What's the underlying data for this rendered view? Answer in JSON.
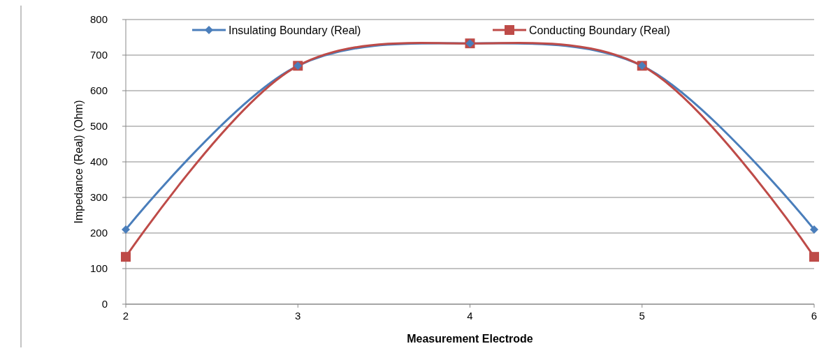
{
  "chart_data": {
    "type": "line",
    "xlabel": "Measurement Electrode",
    "ylabel": "Impedance (Real) (Ohm)",
    "x": [
      2,
      3,
      4,
      5,
      6
    ],
    "xlim": [
      2,
      6
    ],
    "xticks": [
      2,
      3,
      4,
      5,
      6
    ],
    "ylim": [
      0,
      800
    ],
    "yticks": [
      0,
      100,
      200,
      300,
      400,
      500,
      600,
      700,
      800
    ],
    "grid": "y",
    "legend": "top",
    "series": [
      {
        "name": "Insulating Boundary (Real)",
        "color": "#4a7ebb",
        "marker": "diamond",
        "values": [
          210,
          670,
          733,
          670,
          210
        ]
      },
      {
        "name": "Conducting Boundary (Real)",
        "color": "#be4b48",
        "marker": "square",
        "values": [
          133,
          670,
          733,
          670,
          133
        ]
      }
    ]
  }
}
